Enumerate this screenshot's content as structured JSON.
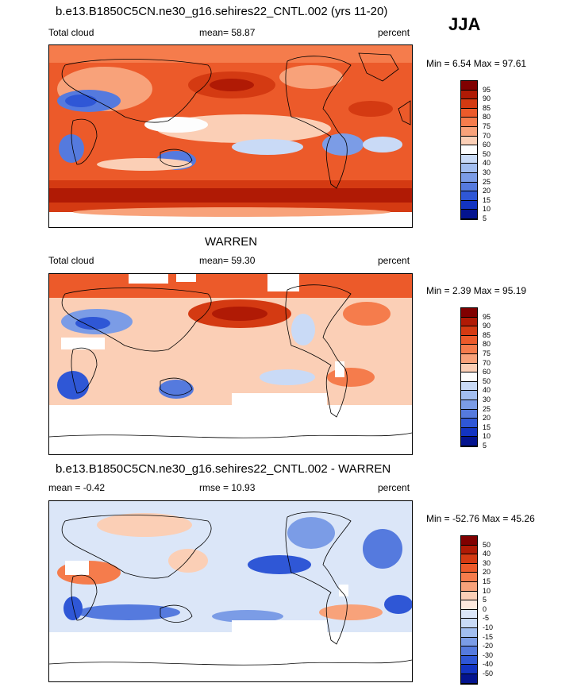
{
  "season": "JJA",
  "panels": [
    {
      "title": "b.e13.B1850C5CN.ne30_g16.sehires22_CNTL.002 (yrs 11-20)",
      "left_label": "Total cloud",
      "center_label": "mean=  58.87",
      "right_label": "percent",
      "minmax": "Min =   6.54 Max =  97.61",
      "levels": [
        "95",
        "90",
        "85",
        "80",
        "75",
        "70",
        "60",
        "50",
        "40",
        "30",
        "25",
        "20",
        "15",
        "10",
        "5"
      ],
      "colors": [
        "#800000",
        "#b01a05",
        "#d43a12",
        "#ec5a2a",
        "#f57c4c",
        "#f8a27a",
        "#fbcfb6",
        "#fdfdfd",
        "#c9daf6",
        "#a2bef0",
        "#7b9ce6",
        "#557ade",
        "#2f57d6",
        "#1334c2",
        "#04148f"
      ]
    },
    {
      "title": "WARREN",
      "left_label": "Total cloud",
      "center_label": "mean=  59.30",
      "right_label": "percent",
      "minmax": "Min =   2.39 Max =  95.19",
      "levels": [
        "95",
        "90",
        "85",
        "80",
        "75",
        "70",
        "60",
        "50",
        "40",
        "30",
        "25",
        "20",
        "15",
        "10",
        "5"
      ],
      "colors": [
        "#800000",
        "#b01a05",
        "#d43a12",
        "#ec5a2a",
        "#f57c4c",
        "#f8a27a",
        "#fbcfb6",
        "#fdfdfd",
        "#c9daf6",
        "#a2bef0",
        "#7b9ce6",
        "#557ade",
        "#2f57d6",
        "#1334c2",
        "#04148f"
      ]
    },
    {
      "title": "b.e13.B1850C5CN.ne30_g16.sehires22_CNTL.002 - WARREN",
      "left_label": "mean =  -0.42",
      "center_label": "rmse =  10.93",
      "right_label": "percent",
      "minmax": "Min = -52.76 Max =  45.26",
      "levels": [
        "50",
        "40",
        "30",
        "20",
        "15",
        "10",
        "5",
        "0",
        "-5",
        "-10",
        "-15",
        "-20",
        "-30",
        "-40",
        "-50"
      ],
      "colors": [
        "#800000",
        "#b01a05",
        "#d43a12",
        "#ec5a2a",
        "#f57c4c",
        "#f8a27a",
        "#fbcfb6",
        "#fde9de",
        "#dbe6f8",
        "#c9daf6",
        "#a2bef0",
        "#7b9ce6",
        "#557ade",
        "#2f57d6",
        "#1334c2",
        "#04148f"
      ]
    }
  ],
  "chart_data": [
    {
      "type": "heatmap",
      "title": "b.e13.B1850C5CN.ne30_g16.sehires22_CNTL.002 (yrs 11-20)",
      "variable": "Total cloud",
      "units": "percent",
      "mean": 58.87,
      "min": 6.54,
      "max": 97.61,
      "contour_levels": [
        5,
        10,
        15,
        20,
        25,
        30,
        40,
        50,
        60,
        70,
        75,
        80,
        85,
        90,
        95
      ]
    },
    {
      "type": "heatmap",
      "title": "WARREN",
      "variable": "Total cloud",
      "units": "percent",
      "mean": 59.3,
      "min": 2.39,
      "max": 95.19,
      "contour_levels": [
        5,
        10,
        15,
        20,
        25,
        30,
        40,
        50,
        60,
        70,
        75,
        80,
        85,
        90,
        95
      ]
    },
    {
      "type": "heatmap",
      "title": "b.e13.B1850C5CN.ne30_g16.sehires22_CNTL.002 - WARREN",
      "units": "percent",
      "mean": -0.42,
      "rmse": 10.93,
      "min": -52.76,
      "max": 45.26,
      "contour_levels": [
        -50,
        -40,
        -30,
        -20,
        -15,
        -10,
        -5,
        0,
        5,
        10,
        15,
        20,
        30,
        40,
        50
      ]
    }
  ]
}
